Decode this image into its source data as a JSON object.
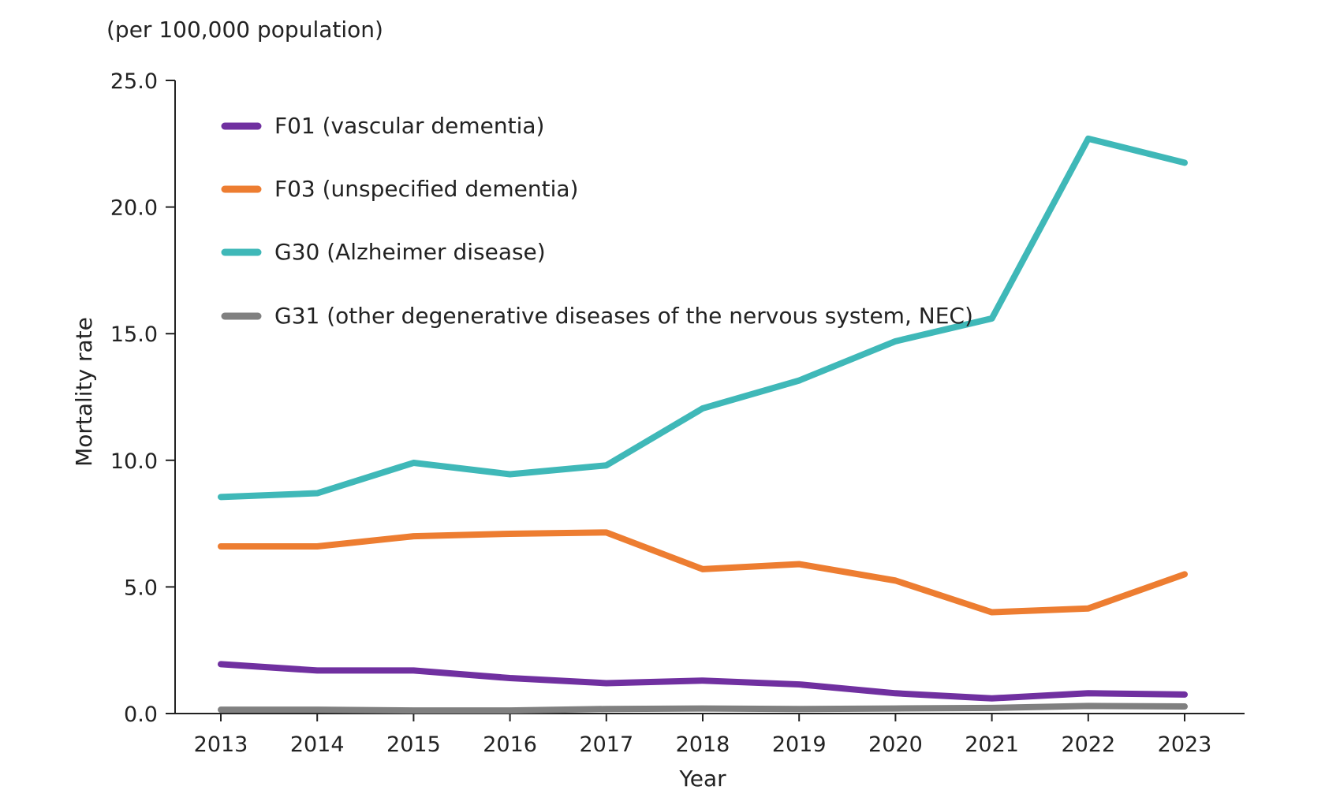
{
  "chart_data": {
    "type": "line",
    "unit_label": "(per 100,000 population)",
    "xlabel": "Year",
    "ylabel": "Mortality rate",
    "categories": [
      "2013",
      "2014",
      "2015",
      "2016",
      "2017",
      "2018",
      "2019",
      "2020",
      "2021",
      "2022",
      "2023"
    ],
    "ylim": [
      0,
      25
    ],
    "yticks": [
      "0.0",
      "5.0",
      "10.0",
      "15.0",
      "20.0",
      "25.0"
    ],
    "grid": false,
    "legend_position": "top-left",
    "series": [
      {
        "name": "F01 (vascular dementia)",
        "color": "#7030A0",
        "values": [
          1.95,
          1.7,
          1.7,
          1.4,
          1.2,
          1.3,
          1.15,
          0.8,
          0.6,
          0.8,
          0.75
        ]
      },
      {
        "name": "F03 (unspecified dementia)",
        "color": "#ED7D31",
        "values": [
          6.6,
          6.6,
          7.0,
          7.1,
          7.15,
          5.7,
          5.9,
          5.25,
          4.0,
          4.15,
          5.5
        ]
      },
      {
        "name": "G30 (Alzheimer disease)",
        "color": "#3FB8B8",
        "values": [
          8.55,
          8.7,
          9.9,
          9.45,
          9.8,
          12.05,
          13.15,
          14.7,
          15.6,
          22.7,
          21.75
        ]
      },
      {
        "name": "G31 (other degenerative diseases of the nervous system, NEC)",
        "color": "#808080",
        "values": [
          0.15,
          0.15,
          0.12,
          0.12,
          0.18,
          0.2,
          0.18,
          0.2,
          0.22,
          0.3,
          0.28
        ]
      }
    ]
  }
}
